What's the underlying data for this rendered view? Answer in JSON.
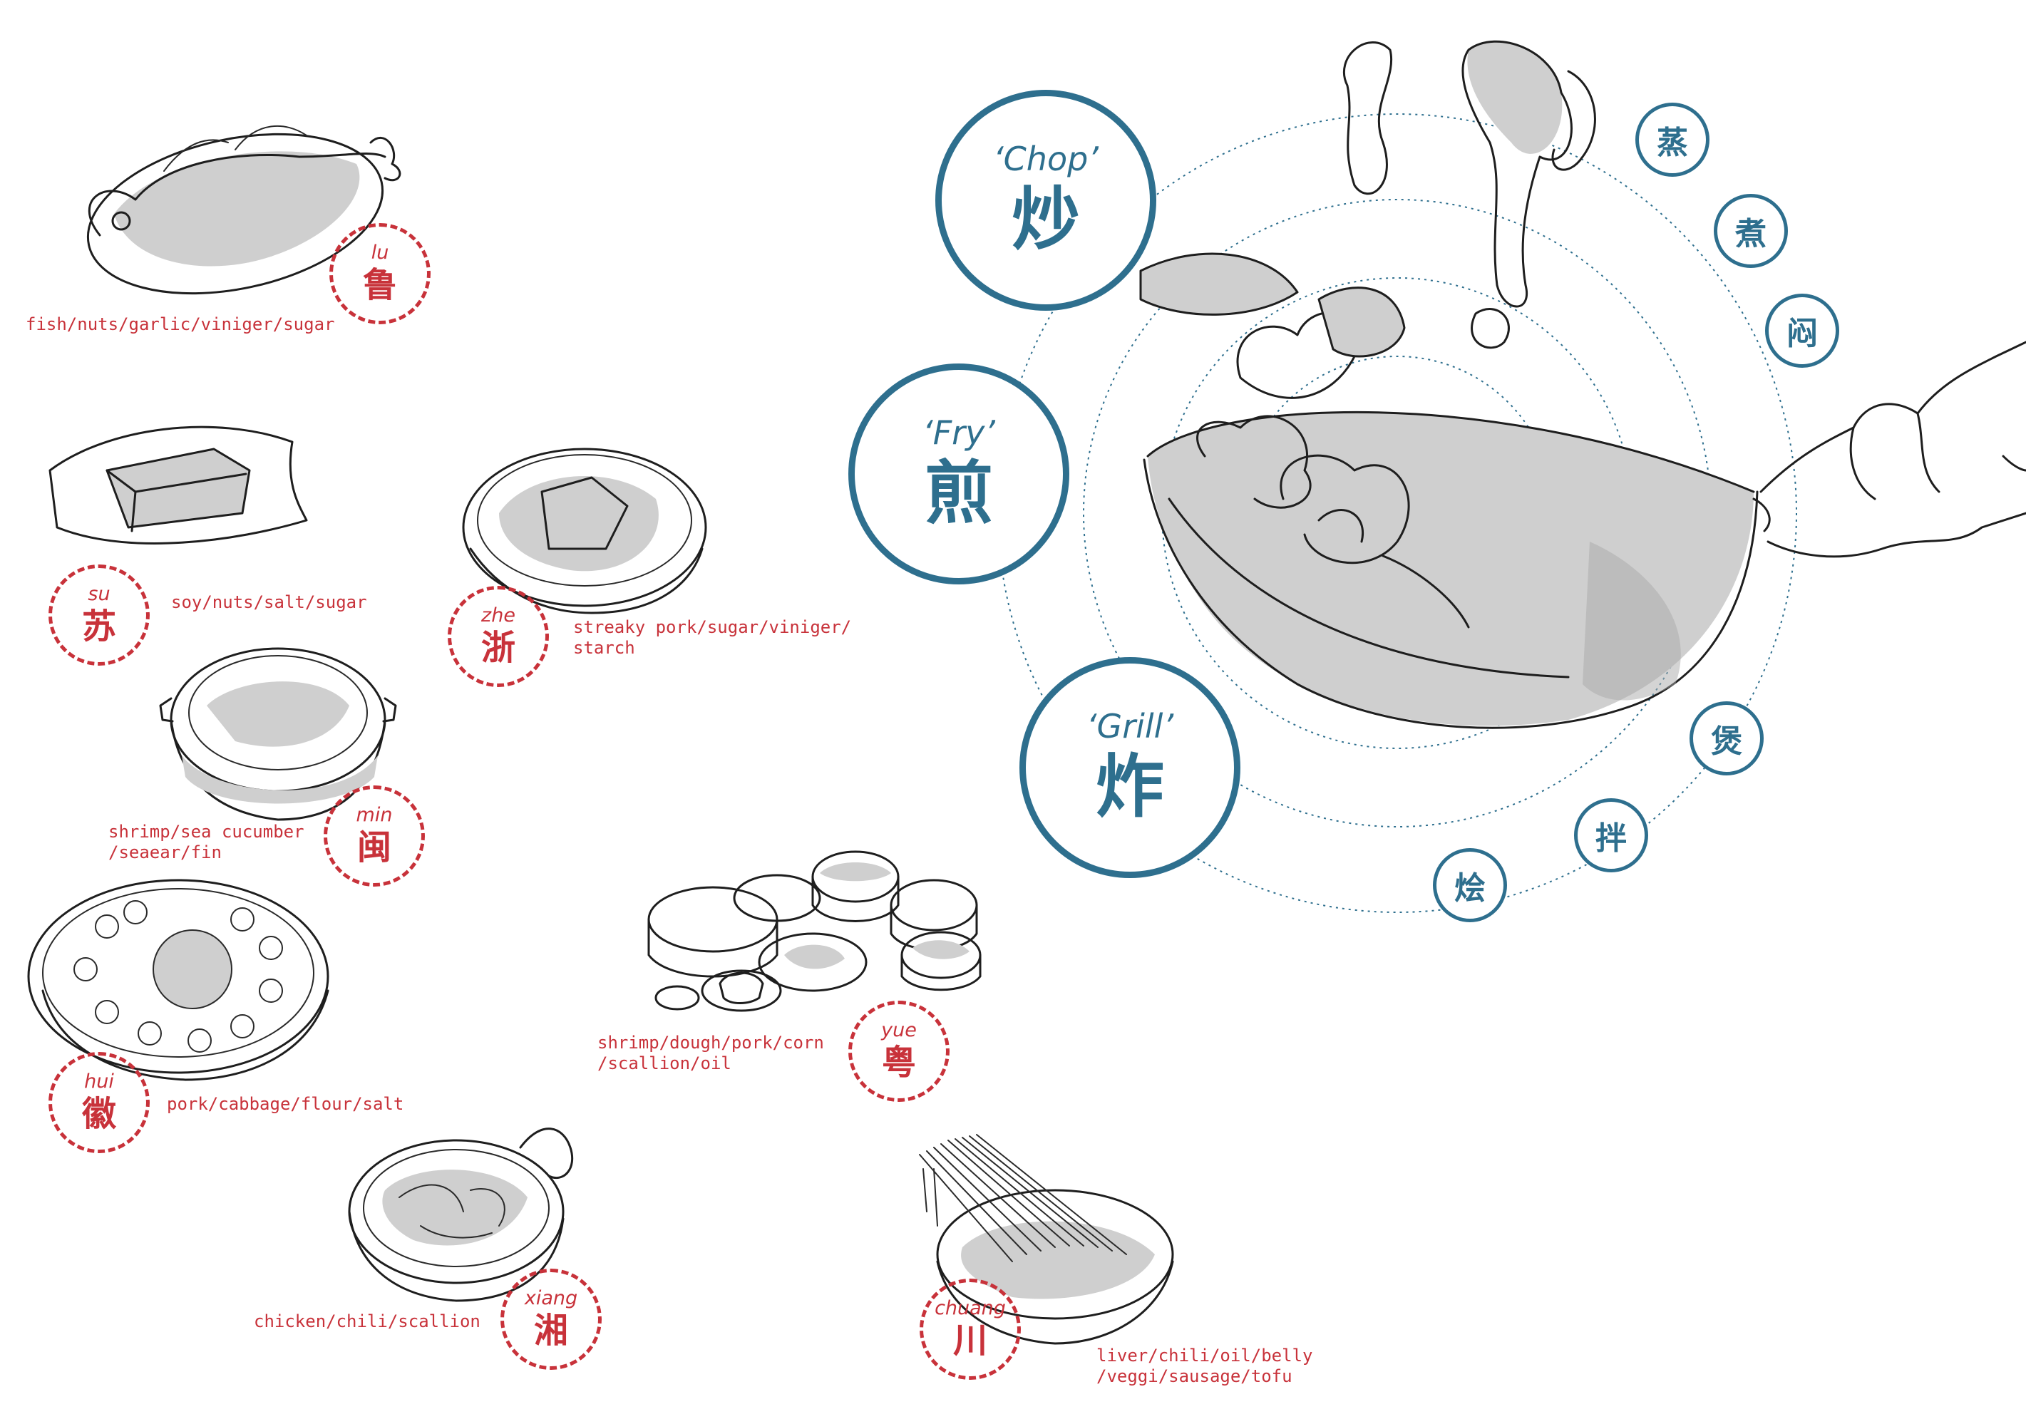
{
  "colors": {
    "region_red": "#c8323a",
    "technique_blue": "#2e6f8e",
    "ink": "#1e1e1e",
    "shade": "#cfcfcf"
  },
  "techniques": [
    {
      "en": "‘Chop’",
      "zh": "炒"
    },
    {
      "en": "‘Fry’",
      "zh": "煎"
    },
    {
      "en": "‘Grill’",
      "zh": "炸"
    }
  ],
  "minor_techniques": [
    "蒸",
    "煮",
    "闷",
    "煲",
    "拌",
    "烩"
  ],
  "regions": [
    {
      "pinyin": "lu",
      "zh": "鲁",
      "ingredients": "fish/nuts/garlic/viniger/sugar",
      "dish_icon": "whole-fish-platter"
    },
    {
      "pinyin": "su",
      "zh": "苏",
      "ingredients": "soy/nuts/salt/sugar",
      "dish_icon": "tofu-plate"
    },
    {
      "pinyin": "zhe",
      "zh": "浙",
      "ingredients": "streaky pork/sugar/viniger/\nstarch",
      "dish_icon": "pork-bowl"
    },
    {
      "pinyin": "min",
      "zh": "闽",
      "ingredients": "shrimp/sea cucumber\n/seaear/fin",
      "dish_icon": "soup-pot"
    },
    {
      "pinyin": "hui",
      "zh": "徽",
      "ingredients": "pork/cabbage/flour/salt",
      "dish_icon": "dumpling-platter"
    },
    {
      "pinyin": "yue",
      "zh": "粤",
      "ingredients": "shrimp/dough/pork/corn\n/scallion/oil",
      "dish_icon": "dim-sum-set"
    },
    {
      "pinyin": "xiang",
      "zh": "湘",
      "ingredients": "chicken/chili/scallion",
      "dish_icon": "stir-fry-wok"
    },
    {
      "pinyin": "chuang",
      "zh": "川",
      "ingredients": "liver/chili/oil/belly\n/veggi/sausage/tofu",
      "dish_icon": "noodle-bowl"
    }
  ],
  "illustration": {
    "centerpiece": "wok-toss-with-hand"
  }
}
